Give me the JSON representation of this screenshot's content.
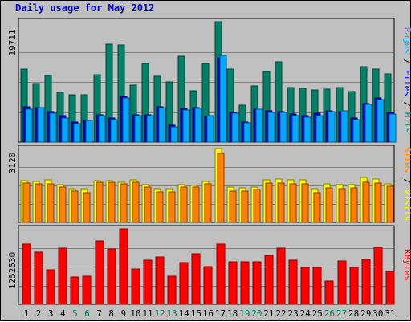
{
  "chart_data": {
    "type": "bar",
    "title": "Daily usage for May 2012",
    "days": [
      "1",
      "2",
      "3",
      "4",
      "5",
      "6",
      "7",
      "8",
      "9",
      "10",
      "11",
      "12",
      "13",
      "14",
      "15",
      "16",
      "17",
      "18",
      "19",
      "20",
      "21",
      "22",
      "23",
      "24",
      "25",
      "26",
      "27",
      "28",
      "29",
      "30",
      "31"
    ],
    "weekend_days": [
      "5",
      "6",
      "12",
      "13",
      "19",
      "20",
      "26",
      "27"
    ],
    "panels": [
      {
        "max_label": "19711",
        "max": 19711,
        "legend": [
          {
            "text": "Pages",
            "color": "#00aaff"
          },
          {
            "text": "Files",
            "color": "#0000cc"
          },
          {
            "text": "Hits",
            "color": "#008066"
          }
        ],
        "series": [
          {
            "name": "Hits",
            "color": "#008066",
            "values": [
              11900,
              9600,
              10900,
              8200,
              7700,
              7800,
              11100,
              16000,
              15900,
              9300,
              12900,
              10800,
              9900,
              14100,
              8400,
              12900,
              19711,
              12000,
              6100,
              9200,
              11500,
              13200,
              9000,
              8800,
              8600,
              8700,
              8900,
              8300,
              12300,
              11900,
              11200
            ]
          },
          {
            "name": "Files",
            "color": "#0000cc",
            "values": [
              5800,
              5700,
              5000,
              4300,
              3300,
              3600,
              4500,
              3900,
              7500,
              4500,
              4500,
              5800,
              2800,
              5500,
              5600,
              4200,
              13800,
              4900,
              3300,
              5400,
              5100,
              5000,
              4600,
              4400,
              4700,
              5100,
              5000,
              3900,
              6300,
              7200,
              4800
            ]
          },
          {
            "name": "Pages",
            "color": "#00aaff",
            "values": [
              5400,
              5700,
              4700,
              4000,
              3000,
              3600,
              4300,
              3700,
              7200,
              4300,
              4300,
              5600,
              2500,
              5300,
              5500,
              4300,
              14200,
              4700,
              3200,
              5400,
              4800,
              4800,
              4400,
              4100,
              4400,
              5000,
              5100,
              3700,
              6200,
              7000,
              4600
            ]
          }
        ]
      },
      {
        "max_label": "3120",
        "max": 3120,
        "legend": [
          {
            "text": "Sites",
            "color": "#ff8000"
          },
          {
            "text": "Visits",
            "color": "#ffff00"
          }
        ],
        "series": [
          {
            "name": "Visits",
            "color": "#ffff00",
            "values": [
              1760,
              1720,
              1810,
              1580,
              1420,
              1410,
              1780,
              1770,
              1710,
              1790,
              1600,
              1410,
              1410,
              1610,
              1560,
              1720,
              3120,
              1500,
              1450,
              1490,
              1790,
              1830,
              1790,
              1790,
              1410,
              1640,
              1590,
              1590,
              1900,
              1820,
              1620
            ]
          },
          {
            "name": "Sites",
            "color": "#ff8000",
            "values": [
              1650,
              1620,
              1640,
              1480,
              1320,
              1260,
              1690,
              1680,
              1620,
              1690,
              1480,
              1280,
              1300,
              1500,
              1500,
              1620,
              2900,
              1320,
              1320,
              1380,
              1670,
              1650,
              1620,
              1630,
              1260,
              1470,
              1440,
              1470,
              1690,
              1650,
              1540
            ]
          }
        ]
      },
      {
        "max_label": "1252530",
        "max": 1252530,
        "legend": [
          {
            "text": "KBytes",
            "color": "#ff0000"
          }
        ],
        "series": [
          {
            "name": "KBytes",
            "color": "#ff0000",
            "values": [
              1000000,
              860000,
              570000,
              930000,
              450000,
              470000,
              1050000,
              920000,
              1252530,
              590000,
              730000,
              780000,
              460000,
              690000,
              840000,
              620000,
              1000000,
              710000,
              710000,
              710000,
              810000,
              930000,
              730000,
              610000,
              610000,
              390000,
              720000,
              610000,
              750000,
              940000,
              540000
            ]
          }
        ]
      }
    ]
  }
}
